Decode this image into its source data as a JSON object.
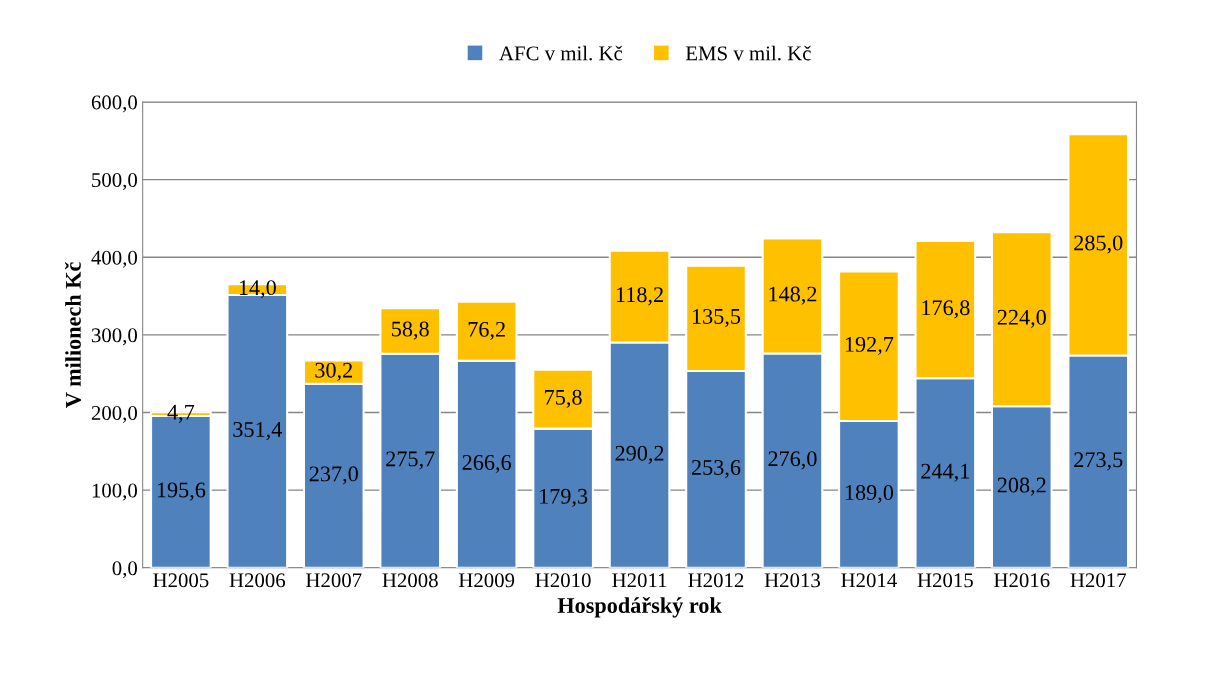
{
  "chart_data": {
    "type": "bar",
    "stacked": true,
    "xlabel": "Hospodářský rok",
    "ylabel": "V milionech Kč",
    "categories": [
      "H2005",
      "H2006",
      "H2007",
      "H2008",
      "H2009",
      "H2010",
      "H2011",
      "H2012",
      "H2013",
      "H2014",
      "H2015",
      "H2016",
      "H2017"
    ],
    "series": [
      {
        "name": "AFC v mil. Kč",
        "color": "#4f81bd",
        "values": [
          195.6,
          351.4,
          237.0,
          275.7,
          266.6,
          179.3,
          290.2,
          253.6,
          276.0,
          189.0,
          244.1,
          208.2,
          273.5
        ],
        "value_labels": [
          "195,6",
          "351,4",
          "237,0",
          "275,7",
          "266,6",
          "179,3",
          "290,2",
          "253,6",
          "276,0",
          "189,0",
          "244,1",
          "208,2",
          "273,5"
        ]
      },
      {
        "name": "EMS v mil. Kč",
        "color": "#ffc000",
        "values": [
          4.7,
          14.0,
          30.2,
          58.8,
          76.2,
          75.8,
          118.2,
          135.5,
          148.2,
          192.7,
          176.8,
          224.0,
          285.0
        ],
        "value_labels": [
          "4,7",
          "14,0",
          "30,2",
          "58,8",
          "76,2",
          "75,8",
          "118,2",
          "135,5",
          "148,2",
          "192,7",
          "176,8",
          "224,0",
          "285,0"
        ]
      }
    ],
    "ylim": [
      0,
      600
    ],
    "yticks": [
      {
        "value": 0,
        "label": "0,0"
      },
      {
        "value": 100,
        "label": "100,0"
      },
      {
        "value": 200,
        "label": "200,0"
      },
      {
        "value": 300,
        "label": "300,0"
      },
      {
        "value": 400,
        "label": "400,0"
      },
      {
        "value": 500,
        "label": "500,0"
      },
      {
        "value": 600,
        "label": "600,0"
      }
    ],
    "grid": "y",
    "legend": "top"
  }
}
